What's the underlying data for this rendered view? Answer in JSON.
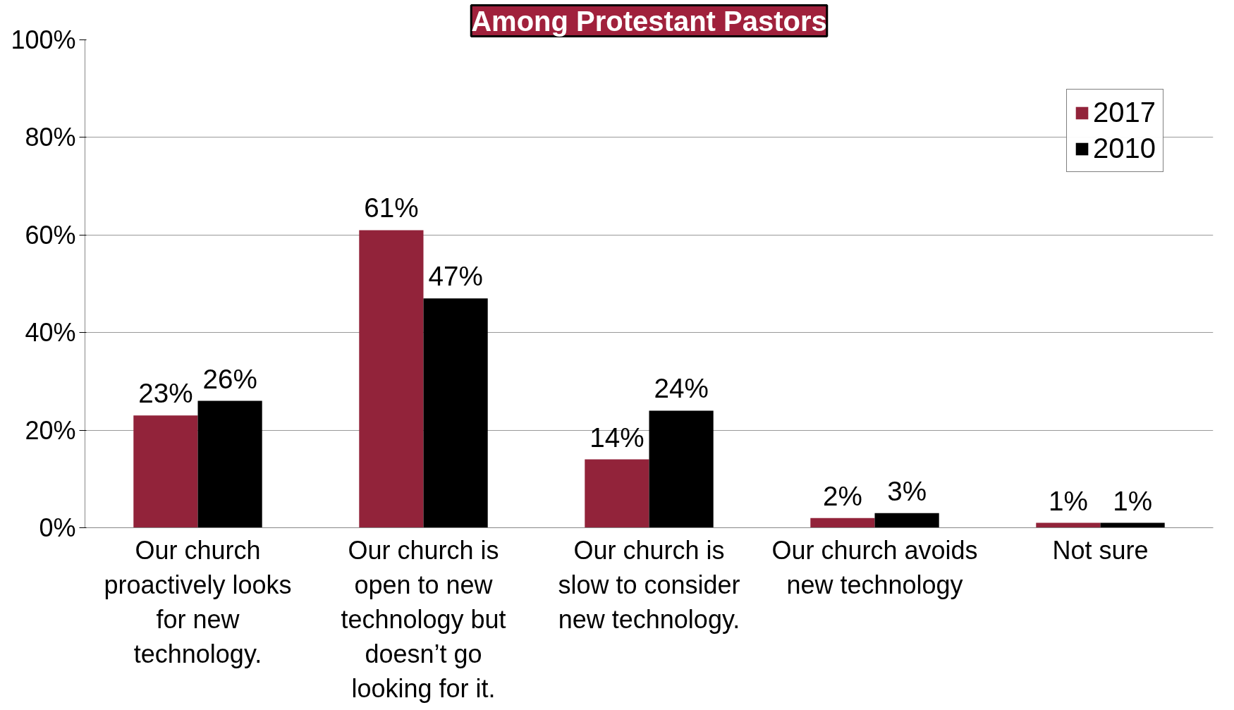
{
  "chart_data": {
    "type": "bar",
    "title": "Among Protestant Pastors",
    "categories": [
      "Our church proactively looks for new technology.",
      "Our church is open to new technology but doesn’t go looking for it.",
      "Our church is slow to consider new technology.",
      "Our church avoids new technology",
      "Not sure"
    ],
    "series": [
      {
        "name": "2017",
        "color": "#92233a",
        "values": [
          23,
          61,
          14,
          2,
          1
        ],
        "value_labels": [
          "23%",
          "61%",
          "14%",
          "2%",
          "1%"
        ]
      },
      {
        "name": "2010",
        "color": "#000000",
        "values": [
          26,
          47,
          24,
          3,
          1
        ],
        "value_labels": [
          "26%",
          "47%",
          "24%",
          "3%",
          "1%"
        ]
      }
    ],
    "ylim": [
      0,
      100
    ],
    "yticks": [
      {
        "value": 0,
        "label": "0%"
      },
      {
        "value": 20,
        "label": "20%"
      },
      {
        "value": 40,
        "label": "40%"
      },
      {
        "value": 60,
        "label": "60%"
      },
      {
        "value": 80,
        "label": "80%"
      },
      {
        "value": 100,
        "label": "100%"
      }
    ],
    "grid": "y",
    "legend": "top right"
  }
}
